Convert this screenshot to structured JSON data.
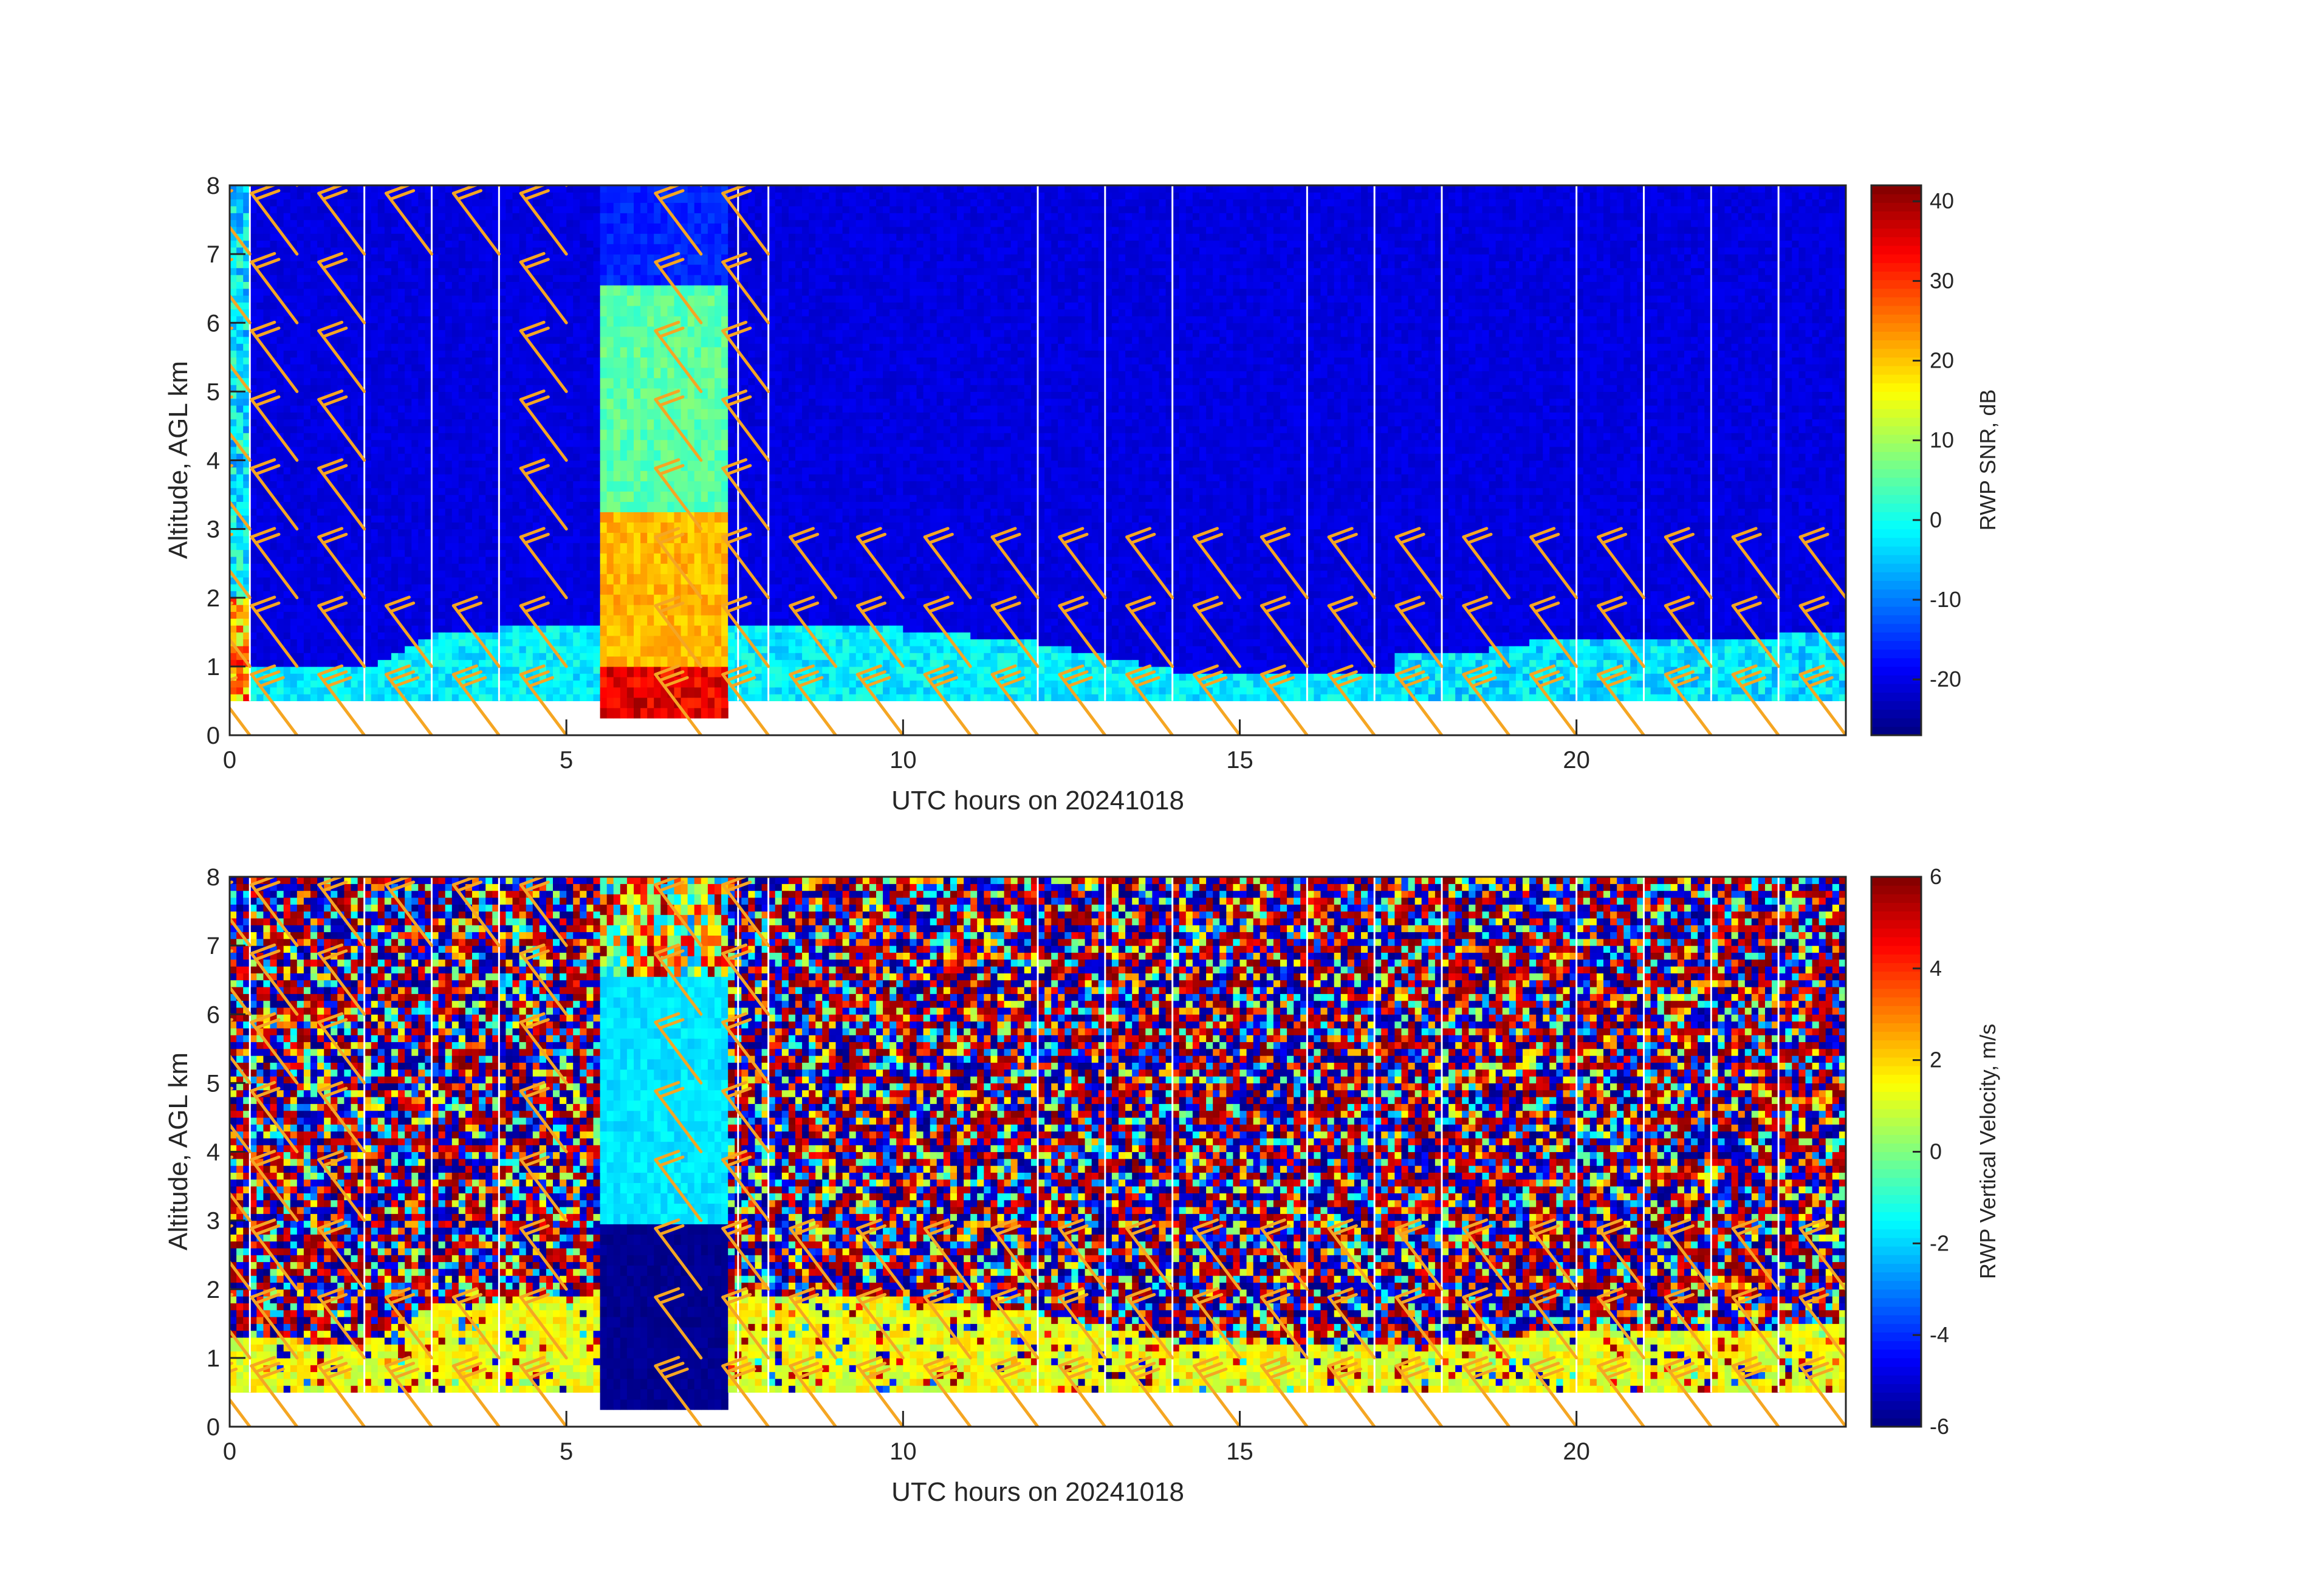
{
  "chart_data": [
    {
      "type": "heatmap",
      "xlabel": "UTC hours on 20241018",
      "ylabel": "Altitude, AGL km",
      "colorbar_label": "RWP SNR, dB",
      "xlim": [
        0,
        24
      ],
      "ylim": [
        0,
        8
      ],
      "x_ticks": [
        0,
        5,
        10,
        15,
        20
      ],
      "x_tick_labels": [
        "0",
        "5",
        "10",
        "15",
        "20"
      ],
      "y_ticks": [
        0,
        1,
        2,
        3,
        4,
        5,
        6,
        7,
        8
      ],
      "y_tick_labels": [
        "0",
        "1",
        "2",
        "3",
        "4",
        "5",
        "6",
        "7",
        "8"
      ],
      "clim": [
        -27,
        42
      ],
      "colorbar_ticks": [
        -20,
        -10,
        0,
        10,
        20,
        30,
        40
      ],
      "colorbar_tick_labels": [
        "-20",
        "-10",
        "0",
        "10",
        "20",
        "30",
        "40"
      ],
      "colormap": "jet",
      "data_altitude_range_km": [
        0.5,
        8
      ],
      "precipitation_window_hours": [
        5.5,
        7.4
      ],
      "profile_gap_hours": [
        0.3,
        2.0,
        3.0,
        4.0,
        7.55,
        8.0,
        12.0,
        13.0,
        14.0,
        16.0,
        17.0,
        18.0,
        20.0,
        21.0,
        22.0,
        23.0
      ],
      "series": [
        {
          "name": "boundary-layer echo",
          "x": [
            0,
            1,
            2,
            3,
            4,
            5,
            8,
            10,
            12,
            14,
            16,
            18,
            20,
            22,
            24
          ],
          "values": [
            1.0,
            0.9,
            0.9,
            1.4,
            1.5,
            1.6,
            1.6,
            1.5,
            1.3,
            0.9,
            0.8,
            0.8,
            1.1,
            1.0,
            1.2
          ]
        }
      ]
    },
    {
      "type": "heatmap",
      "xlabel": "UTC hours on 20241018",
      "ylabel": "Altitude, AGL km",
      "colorbar_label": "RWP Vertical Velocity, m/s",
      "xlim": [
        0,
        24
      ],
      "ylim": [
        0,
        8
      ],
      "x_ticks": [
        0,
        5,
        10,
        15,
        20
      ],
      "x_tick_labels": [
        "0",
        "5",
        "10",
        "15",
        "20"
      ],
      "y_ticks": [
        0,
        1,
        2,
        3,
        4,
        5,
        6,
        7,
        8
      ],
      "y_tick_labels": [
        "0",
        "1",
        "2",
        "3",
        "4",
        "5",
        "6",
        "7",
        "8"
      ],
      "clim": [
        -6,
        6
      ],
      "colorbar_ticks": [
        -6,
        -4,
        -2,
        0,
        2,
        4,
        6
      ],
      "colorbar_tick_labels": [
        "-6",
        "-4",
        "-2",
        "0",
        "2",
        "4",
        "6"
      ],
      "colormap": "jet",
      "data_altitude_range_km": [
        0.5,
        8
      ],
      "precipitation_window_hours": [
        5.5,
        7.4
      ],
      "precipitation_fall_speed_ms": [
        -6,
        -2
      ],
      "profile_gap_hours": [
        0.3,
        2.0,
        3.0,
        4.0,
        7.55,
        8.0,
        12.0,
        13.0,
        14.0,
        16.0,
        17.0,
        18.0,
        20.0,
        21.0,
        22.0,
        23.0
      ]
    }
  ],
  "wind_barbs": {
    "color": "#f5a623",
    "times_hours": [
      0.0,
      0.3,
      1.0,
      2.0,
      3.0,
      4.0,
      5.0,
      7.0,
      8.0,
      9.0,
      10.0,
      11.0,
      12.0,
      13.0,
      14.0,
      15.0,
      16.0,
      17.0,
      18.0,
      19.0,
      20.0,
      21.0,
      22.0,
      23.0,
      24.0
    ],
    "heights_km": [
      0.0,
      1.0,
      2.0,
      3.0,
      4.0,
      5.0,
      6.0,
      7.0,
      8.0
    ]
  }
}
